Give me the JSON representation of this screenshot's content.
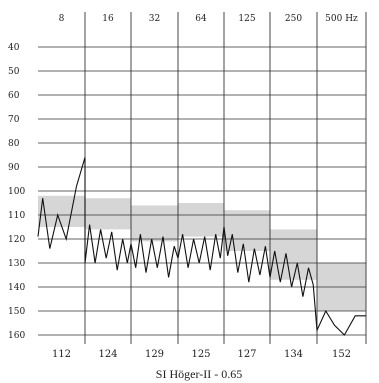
{
  "chart_data": {
    "type": "line",
    "title": "",
    "caption": "SI Höger-II - 0.65",
    "freq_labels": [
      "8",
      "16",
      "32",
      "64",
      "125",
      "250",
      "500 Hz"
    ],
    "y_tick_labels": [
      "40",
      "50",
      "60",
      "70",
      "80",
      "90",
      "100",
      "110",
      "120",
      "130",
      "140",
      "150",
      "160"
    ],
    "ylim": [
      40,
      160
    ],
    "y_inverted": true,
    "grid": true,
    "band_values": [
      "112",
      "124",
      "129",
      "125",
      "127",
      "134",
      "152"
    ],
    "bands": [
      {
        "band": "8",
        "low": 102,
        "high": 115
      },
      {
        "band": "16",
        "low": 103,
        "high": 116
      },
      {
        "band": "32",
        "low": 106,
        "high": 121
      },
      {
        "band": "64",
        "low": 105,
        "high": 119
      },
      {
        "band": "125",
        "low": 108,
        "high": 125
      },
      {
        "band": "250",
        "low": 116,
        "high": 137
      },
      {
        "band": "500",
        "low": 130,
        "high": 150
      }
    ],
    "series": [
      {
        "values": [
          [
            0.0,
            119
          ],
          [
            0.1,
            103
          ],
          [
            0.25,
            124
          ],
          [
            0.42,
            110
          ],
          [
            0.6,
            120
          ],
          [
            0.82,
            98
          ],
          [
            1.0,
            86
          ],
          [
            1.0,
            130
          ],
          [
            1.1,
            114
          ],
          [
            1.22,
            130
          ],
          [
            1.34,
            116
          ],
          [
            1.46,
            128
          ],
          [
            1.58,
            117
          ],
          [
            1.7,
            133
          ],
          [
            1.82,
            120
          ],
          [
            1.92,
            130
          ],
          [
            2.0,
            122
          ],
          [
            2.1,
            132
          ],
          [
            2.2,
            118
          ],
          [
            2.32,
            134
          ],
          [
            2.44,
            120
          ],
          [
            2.56,
            132
          ],
          [
            2.68,
            119
          ],
          [
            2.8,
            136
          ],
          [
            2.92,
            123
          ],
          [
            3.0,
            128
          ],
          [
            3.1,
            118
          ],
          [
            3.22,
            132
          ],
          [
            3.34,
            120
          ],
          [
            3.46,
            130
          ],
          [
            3.58,
            119
          ],
          [
            3.7,
            133
          ],
          [
            3.82,
            118
          ],
          [
            3.92,
            128
          ],
          [
            4.0,
            115
          ],
          [
            4.08,
            127
          ],
          [
            4.18,
            118
          ],
          [
            4.3,
            134
          ],
          [
            4.42,
            122
          ],
          [
            4.54,
            138
          ],
          [
            4.66,
            124
          ],
          [
            4.78,
            135
          ],
          [
            4.9,
            123
          ],
          [
            5.0,
            136
          ],
          [
            5.1,
            125
          ],
          [
            5.22,
            138
          ],
          [
            5.34,
            126
          ],
          [
            5.46,
            140
          ],
          [
            5.58,
            130
          ],
          [
            5.7,
            144
          ],
          [
            5.82,
            132
          ],
          [
            5.92,
            139
          ],
          [
            6.0,
            158
          ],
          [
            6.18,
            150
          ],
          [
            6.36,
            156
          ],
          [
            6.56,
            160
          ],
          [
            6.78,
            152
          ],
          [
            7.0,
            152
          ]
        ]
      }
    ]
  }
}
